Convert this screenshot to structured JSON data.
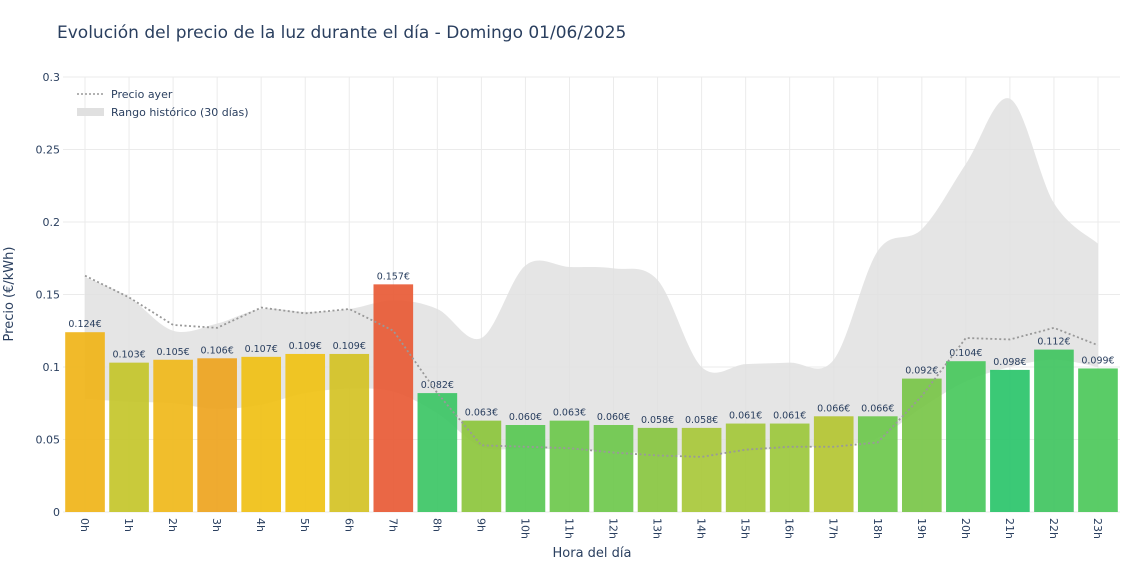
{
  "chart_data": {
    "type": "bar",
    "title": "Evolución del precio de la luz durante el día - Domingo 01/06/2025",
    "xlabel": "Hora del día",
    "ylabel": "Precio (€/kWh)",
    "ylim": [
      0,
      0.3
    ],
    "yticks": [
      0,
      0.05,
      0.1,
      0.15,
      0.2,
      0.25,
      0.3
    ],
    "ytick_labels": [
      "0",
      "0.05",
      "0.1",
      "0.15",
      "0.2",
      "0.25",
      "0.3"
    ],
    "categories": [
      "0h",
      "1h",
      "2h",
      "3h",
      "4h",
      "5h",
      "6h",
      "7h",
      "8h",
      "9h",
      "10h",
      "11h",
      "12h",
      "13h",
      "14h",
      "15h",
      "16h",
      "17h",
      "18h",
      "19h",
      "20h",
      "21h",
      "22h",
      "23h"
    ],
    "values": [
      0.124,
      0.103,
      0.105,
      0.106,
      0.107,
      0.109,
      0.109,
      0.157,
      0.082,
      0.063,
      0.06,
      0.063,
      0.06,
      0.058,
      0.058,
      0.061,
      0.061,
      0.066,
      0.066,
      0.092,
      0.104,
      0.098,
      0.112,
      0.099
    ],
    "data_labels": [
      "0.124€",
      "0.103€",
      "0.105€",
      "0.106€",
      "0.107€",
      "0.109€",
      "0.109€",
      "0.157€",
      "0.082€",
      "0.063€",
      "0.060€",
      "0.063€",
      "0.060€",
      "0.058€",
      "0.058€",
      "0.061€",
      "0.061€",
      "0.066€",
      "0.066€",
      "0.092€",
      "0.104€",
      "0.098€",
      "0.112€",
      "0.099€"
    ],
    "bar_colors": [
      "#f0b418",
      "#c4c62a",
      "#f0b81a",
      "#eea41e",
      "#f0c014",
      "#f0c214",
      "#d4c224",
      "#e85a35",
      "#3cc665",
      "#8cc63c",
      "#58c852",
      "#6cc84c",
      "#6ec84c",
      "#88c640",
      "#a8c83a",
      "#a4c83a",
      "#9cc83c",
      "#b4c632",
      "#6cc84c",
      "#78c648",
      "#48c85c",
      "#2ac46a",
      "#40c460",
      "#4cc85a"
    ],
    "series": [
      {
        "name": "Precio ayer",
        "type": "line",
        "style": "dotted",
        "color": "#999999",
        "values": [
          0.163,
          0.148,
          0.129,
          0.127,
          0.141,
          0.137,
          0.14,
          0.125,
          0.082,
          0.046,
          0.045,
          0.044,
          0.041,
          0.039,
          0.038,
          0.043,
          0.045,
          0.045,
          0.048,
          0.08,
          0.12,
          0.119,
          0.127,
          0.115
        ]
      },
      {
        "name": "Rango histórico (30 días)",
        "type": "band",
        "color": "#e0e0e0",
        "upper": [
          0.162,
          0.148,
          0.125,
          0.13,
          0.14,
          0.138,
          0.14,
          0.146,
          0.14,
          0.12,
          0.17,
          0.169,
          0.168,
          0.16,
          0.1,
          0.102,
          0.103,
          0.105,
          0.18,
          0.195,
          0.24,
          0.285,
          0.213,
          0.185
        ],
        "lower": [
          0.078,
          0.076,
          0.075,
          0.071,
          0.074,
          0.082,
          0.085,
          0.083,
          0.068,
          0.045,
          0.044,
          0.043,
          0.042,
          0.04,
          0.039,
          0.042,
          0.044,
          0.046,
          0.051,
          0.072,
          0.09,
          0.1,
          0.105,
          0.1
        ]
      }
    ],
    "legend_position": "top-left",
    "grid": true
  }
}
